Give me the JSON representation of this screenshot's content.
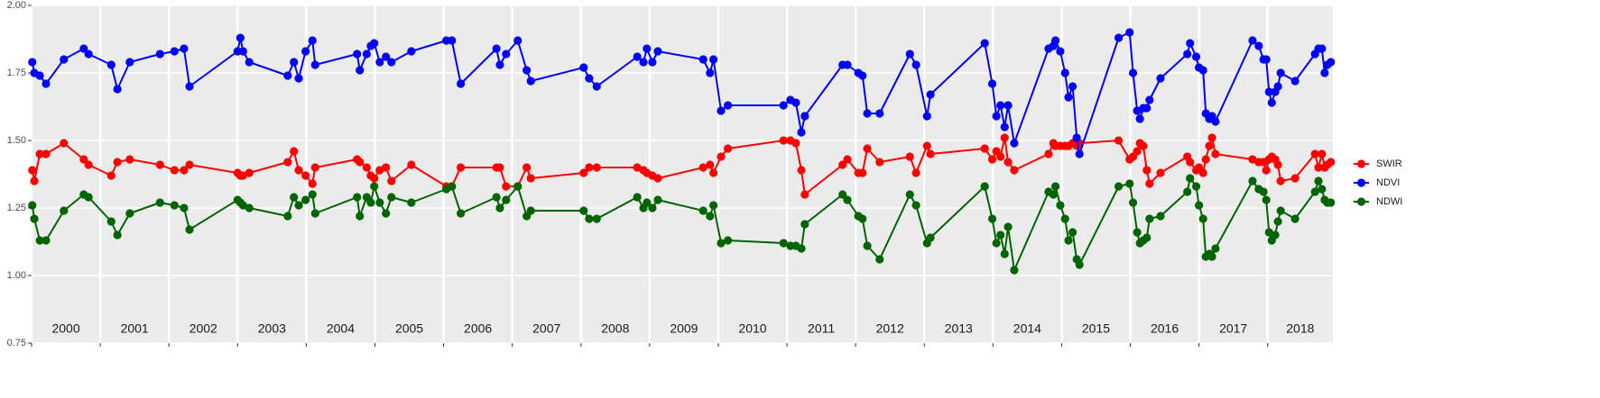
{
  "chart_data": {
    "type": "line",
    "x": [
      2000.01,
      2000.04,
      2000.12,
      2000.21,
      2000.47,
      2000.76,
      2000.83,
      2001.16,
      2001.25,
      2001.43,
      2001.87,
      2002.08,
      2002.22,
      2002.3,
      2003.0,
      2003.04,
      2003.08,
      2003.17,
      2003.73,
      2003.82,
      2003.89,
      2003.99,
      2004.09,
      2004.13,
      2004.74,
      2004.78,
      2004.88,
      2004.94,
      2004.99,
      2005.07,
      2005.16,
      2005.24,
      2005.53,
      2006.04,
      2006.12,
      2006.25,
      2006.77,
      2006.82,
      2006.91,
      2007.08,
      2007.21,
      2007.27,
      2008.04,
      2008.12,
      2008.23,
      2008.82,
      2008.91,
      2008.96,
      2009.04,
      2009.12,
      2009.78,
      2009.88,
      2009.93,
      2010.04,
      2010.14,
      2010.95,
      2011.05,
      2011.13,
      2011.21,
      2011.26,
      2011.81,
      2011.88,
      2012.04,
      2012.1,
      2012.17,
      2012.35,
      2012.79,
      2012.88,
      2013.04,
      2013.09,
      2013.88,
      2013.99,
      2014.05,
      2014.11,
      2014.17,
      2014.22,
      2014.31,
      2014.81,
      2014.88,
      2014.91,
      2014.98,
      2015.05,
      2015.1,
      2015.16,
      2015.22,
      2015.26,
      2015.83,
      2015.99,
      2016.04,
      2016.1,
      2016.14,
      2016.19,
      2016.24,
      2016.28,
      2016.44,
      2016.83,
      2016.87,
      2016.96,
      2017.0,
      2017.06,
      2017.1,
      2017.15,
      2017.19,
      2017.24,
      2017.78,
      2017.87,
      2017.94,
      2017.98,
      2018.02,
      2018.06,
      2018.11,
      2018.15,
      2018.19,
      2018.4,
      2018.69,
      2018.74,
      2018.79,
      2018.83,
      2018.87,
      2018.92
    ],
    "series": [
      {
        "name": "SWIR",
        "color": "#ff0000",
        "values": [
          1.39,
          1.35,
          1.45,
          1.45,
          1.49,
          1.43,
          1.41,
          1.37,
          1.42,
          1.43,
          1.41,
          1.39,
          1.39,
          1.41,
          1.38,
          1.37,
          1.37,
          1.38,
          1.42,
          1.46,
          1.39,
          1.37,
          1.34,
          1.4,
          1.43,
          1.42,
          1.4,
          1.37,
          1.36,
          1.39,
          1.4,
          1.35,
          1.41,
          1.33,
          1.33,
          1.4,
          1.4,
          1.4,
          1.33,
          1.33,
          1.4,
          1.36,
          1.38,
          1.4,
          1.4,
          1.4,
          1.39,
          1.38,
          1.37,
          1.36,
          1.4,
          1.41,
          1.38,
          1.44,
          1.47,
          1.5,
          1.5,
          1.49,
          1.39,
          1.3,
          1.41,
          1.43,
          1.38,
          1.38,
          1.47,
          1.42,
          1.44,
          1.38,
          1.48,
          1.45,
          1.47,
          1.43,
          1.46,
          1.44,
          1.51,
          1.42,
          1.39,
          1.45,
          1.49,
          1.48,
          1.48,
          1.48,
          1.48,
          1.49,
          1.48,
          1.49,
          1.5,
          1.43,
          1.44,
          1.46,
          1.49,
          1.48,
          1.39,
          1.34,
          1.38,
          1.44,
          1.42,
          1.39,
          1.4,
          1.38,
          1.43,
          1.48,
          1.51,
          1.45,
          1.43,
          1.42,
          1.42,
          1.39,
          1.43,
          1.44,
          1.43,
          1.41,
          1.35,
          1.36,
          1.45,
          1.4,
          1.45,
          1.4,
          1.41,
          1.42
        ]
      },
      {
        "name": "NDVI",
        "color": "#0000ff",
        "values": [
          1.79,
          1.75,
          1.74,
          1.71,
          1.8,
          1.84,
          1.82,
          1.78,
          1.69,
          1.79,
          1.82,
          1.83,
          1.84,
          1.7,
          1.83,
          1.88,
          1.83,
          1.79,
          1.74,
          1.79,
          1.73,
          1.83,
          1.87,
          1.78,
          1.82,
          1.76,
          1.82,
          1.85,
          1.86,
          1.79,
          1.81,
          1.79,
          1.83,
          1.87,
          1.87,
          1.71,
          1.84,
          1.78,
          1.82,
          1.87,
          1.76,
          1.72,
          1.77,
          1.73,
          1.7,
          1.81,
          1.79,
          1.84,
          1.79,
          1.83,
          1.8,
          1.75,
          1.8,
          1.61,
          1.63,
          1.63,
          1.65,
          1.64,
          1.53,
          1.59,
          1.78,
          1.78,
          1.75,
          1.74,
          1.6,
          1.6,
          1.82,
          1.78,
          1.59,
          1.67,
          1.86,
          1.71,
          1.59,
          1.63,
          1.55,
          1.63,
          1.49,
          1.84,
          1.85,
          1.87,
          1.83,
          1.75,
          1.66,
          1.7,
          1.51,
          1.45,
          1.88,
          1.9,
          1.75,
          1.61,
          1.58,
          1.62,
          1.62,
          1.65,
          1.73,
          1.82,
          1.86,
          1.81,
          1.77,
          1.76,
          1.6,
          1.58,
          1.59,
          1.57,
          1.87,
          1.85,
          1.8,
          1.8,
          1.68,
          1.64,
          1.68,
          1.7,
          1.75,
          1.72,
          1.82,
          1.84,
          1.84,
          1.75,
          1.78,
          1.79
        ]
      },
      {
        "name": "NDWI",
        "color": "#006400",
        "values": [
          1.26,
          1.21,
          1.13,
          1.13,
          1.24,
          1.3,
          1.29,
          1.2,
          1.15,
          1.23,
          1.27,
          1.26,
          1.25,
          1.17,
          1.28,
          1.27,
          1.26,
          1.25,
          1.22,
          1.29,
          1.26,
          1.28,
          1.3,
          1.23,
          1.29,
          1.22,
          1.29,
          1.27,
          1.33,
          1.27,
          1.23,
          1.29,
          1.27,
          1.32,
          1.33,
          1.23,
          1.29,
          1.25,
          1.28,
          1.33,
          1.22,
          1.24,
          1.24,
          1.21,
          1.21,
          1.29,
          1.25,
          1.27,
          1.25,
          1.28,
          1.24,
          1.22,
          1.26,
          1.12,
          1.13,
          1.12,
          1.11,
          1.11,
          1.1,
          1.19,
          1.3,
          1.28,
          1.22,
          1.21,
          1.11,
          1.06,
          1.3,
          1.26,
          1.12,
          1.14,
          1.33,
          1.21,
          1.12,
          1.15,
          1.08,
          1.18,
          1.02,
          1.31,
          1.3,
          1.33,
          1.26,
          1.21,
          1.13,
          1.16,
          1.06,
          1.04,
          1.33,
          1.34,
          1.27,
          1.16,
          1.12,
          1.13,
          1.14,
          1.21,
          1.22,
          1.31,
          1.36,
          1.33,
          1.26,
          1.21,
          1.07,
          1.08,
          1.07,
          1.1,
          1.35,
          1.32,
          1.31,
          1.28,
          1.16,
          1.13,
          1.15,
          1.2,
          1.24,
          1.21,
          1.31,
          1.35,
          1.32,
          1.28,
          1.27,
          1.27
        ]
      }
    ],
    "xlim": [
      2000,
      2018.95
    ],
    "xticks": [
      2000,
      2001,
      2002,
      2003,
      2004,
      2005,
      2006,
      2007,
      2008,
      2009,
      2010,
      2011,
      2012,
      2013,
      2014,
      2015,
      2016,
      2017,
      2018
    ],
    "x_labels": [
      "2000",
      "2001",
      "2002",
      "2003",
      "2004",
      "2005",
      "2006",
      "2007",
      "2008",
      "2009",
      "2010",
      "2011",
      "2012",
      "2013",
      "2014",
      "2015",
      "2016",
      "2017",
      "2018"
    ],
    "ylim": [
      0.75,
      2.0
    ],
    "yticks": [
      0.75,
      {
        "value": 1.0,
        "label": "1.00"
      },
      1.25,
      {
        "value": 1.5,
        "label": "1.50"
      },
      1.75,
      {
        "value": 2.0,
        "label": "2.00"
      }
    ],
    "grid": true,
    "legend_position": "right"
  }
}
